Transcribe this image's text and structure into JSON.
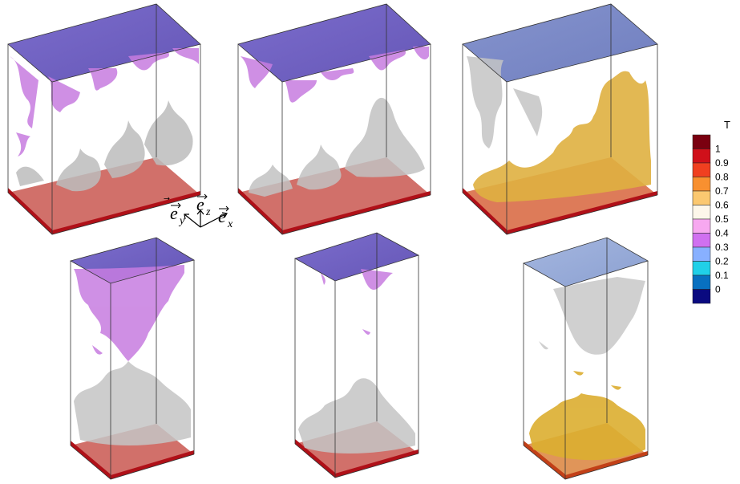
{
  "legend": {
    "title": "T",
    "ticks": [
      "1",
      "0.9",
      "0.8",
      "0.7",
      "0.6",
      "0.5",
      "0.4",
      "0.3",
      "0.2",
      "0.1",
      "0"
    ],
    "colors": [
      "#7a0010",
      "#d0101a",
      "#f04020",
      "#f89030",
      "#fbc870",
      "#fdf7ea",
      "#f7a8f0",
      "#d070f0",
      "#88b0ff",
      "#20d0e8",
      "#0870c0",
      "#0a0a80"
    ]
  },
  "axes": {
    "y_label": "e",
    "y_sub": "y",
    "z_label": "e",
    "z_sub": "z",
    "x_label": "e",
    "x_sub": "x"
  },
  "colors": {
    "top_plate": "#6a58c0",
    "top_plate_light": "#7b8fd0",
    "bottom_plate": "#c83028",
    "hot_region": "#c85030",
    "cold_plume": "#c87ae0",
    "neutral_plume": "#c8c8c8",
    "warm_plume": "#e0b040"
  }
}
